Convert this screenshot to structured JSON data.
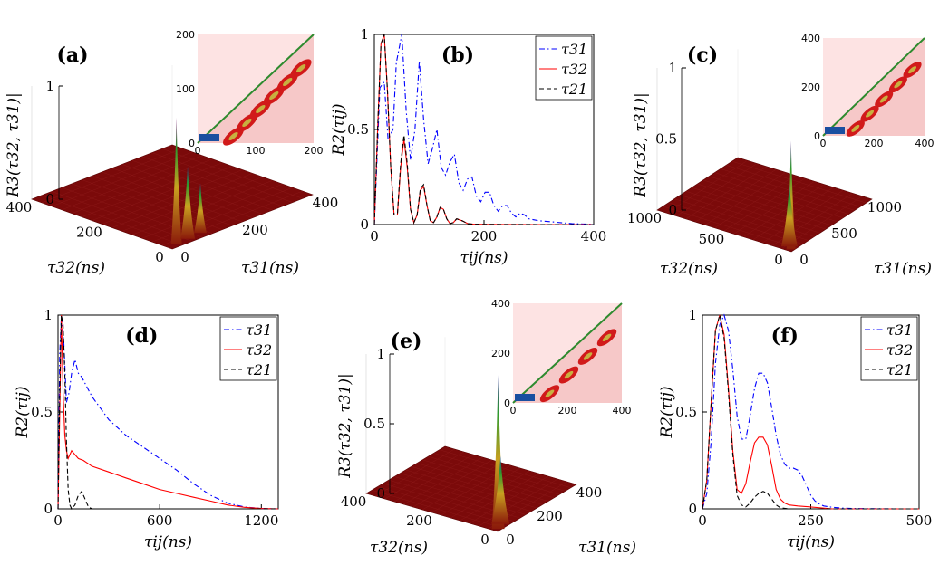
{
  "chart_data": [
    {
      "id": "a",
      "type": "surface3d",
      "panel_label": "(a)",
      "zlabel": "R3(τ32, τ31)|",
      "xlabel": "τ32(ns)",
      "ylabel": "τ31(ns)",
      "z_ticks": [
        "0",
        "1"
      ],
      "x_ticks": [
        "0",
        "200",
        "400"
      ],
      "y_ticks": [
        "0",
        "200",
        "400"
      ],
      "inset": {
        "type": "heatmap",
        "x_ticks": [
          "0",
          "100",
          "200"
        ],
        "y_ticks": [
          "0",
          "100",
          "200"
        ],
        "xlim": [
          0,
          200
        ],
        "ylim": [
          0,
          200
        ]
      },
      "colors": {
        "floor": "#7b0a0a",
        "background_inset": "#fde3e3"
      }
    },
    {
      "id": "b",
      "type": "line",
      "panel_label": "(b)",
      "ylabel": "R2(τij)",
      "xlabel": "τij(ns)",
      "xlim": [
        0,
        400
      ],
      "ylim": [
        0,
        1
      ],
      "x_ticks": [
        "0",
        "200",
        "400"
      ],
      "y_ticks": [
        "0",
        "0.5",
        "1"
      ],
      "series": [
        {
          "name": "τ31",
          "color": "#0000ff",
          "style": "dashdot",
          "x": [
            0,
            10,
            18,
            25,
            34,
            40,
            50,
            58,
            66,
            74,
            82,
            90,
            98,
            106,
            114,
            122,
            130,
            138,
            146,
            154,
            162,
            170,
            178,
            186,
            194,
            202,
            210,
            218,
            226,
            234,
            242,
            250,
            258,
            266,
            274,
            282,
            300,
            320,
            340,
            360,
            380,
            400
          ],
          "y": [
            0,
            0.72,
            0.75,
            0.45,
            0.5,
            0.85,
            1.0,
            0.6,
            0.34,
            0.5,
            0.86,
            0.55,
            0.32,
            0.4,
            0.5,
            0.3,
            0.26,
            0.33,
            0.37,
            0.22,
            0.18,
            0.24,
            0.25,
            0.15,
            0.12,
            0.17,
            0.17,
            0.1,
            0.07,
            0.1,
            0.1,
            0.06,
            0.04,
            0.06,
            0.05,
            0.03,
            0.02,
            0.015,
            0.01,
            0.005,
            0.003,
            0.002
          ]
        },
        {
          "name": "τ32",
          "color": "#ff0000",
          "style": "solid",
          "x": [
            0,
            6,
            12,
            18,
            24,
            30,
            36,
            42,
            48,
            54,
            60,
            66,
            72,
            78,
            84,
            90,
            96,
            102,
            108,
            114,
            120,
            126,
            132,
            138,
            144,
            150,
            160,
            170,
            180,
            200,
            240,
            300,
            400
          ],
          "y": [
            0,
            0.5,
            0.95,
            1.0,
            0.7,
            0.3,
            0.05,
            0.05,
            0.3,
            0.45,
            0.3,
            0.08,
            0.01,
            0.05,
            0.18,
            0.2,
            0.1,
            0.02,
            0.01,
            0.04,
            0.09,
            0.08,
            0.03,
            0.005,
            0.01,
            0.03,
            0.02,
            0.005,
            0.002,
            0.001,
            0.0005,
            0.0,
            0.0
          ]
        },
        {
          "name": "τ21",
          "color": "#000000",
          "style": "dashed",
          "x": [
            0,
            6,
            12,
            18,
            24,
            30,
            36,
            42,
            48,
            54,
            60,
            66,
            72,
            78,
            84,
            90,
            96,
            102,
            108,
            114,
            120,
            126,
            132,
            138,
            144,
            150,
            160,
            170,
            180,
            200,
            240,
            300,
            400
          ],
          "y": [
            0,
            0.5,
            0.95,
            1.0,
            0.7,
            0.3,
            0.05,
            0.05,
            0.32,
            0.47,
            0.32,
            0.08,
            0.01,
            0.05,
            0.19,
            0.21,
            0.1,
            0.02,
            0.01,
            0.04,
            0.09,
            0.08,
            0.03,
            0.005,
            0.01,
            0.03,
            0.02,
            0.005,
            0.002,
            0.001,
            0.0005,
            0.0,
            0.0
          ]
        }
      ],
      "legend": "top-right"
    },
    {
      "id": "c",
      "type": "surface3d",
      "panel_label": "(c)",
      "zlabel": "R3(τ32, τ31)|",
      "xlabel": "τ32(ns)",
      "ylabel": "τ31(ns)",
      "z_ticks": [
        "0",
        "0.5",
        "1"
      ],
      "x_ticks": [
        "0",
        "500",
        "1000"
      ],
      "y_ticks": [
        "0",
        "500",
        "1000"
      ],
      "inset": {
        "type": "heatmap",
        "x_ticks": [
          "0",
          "200",
          "400"
        ],
        "y_ticks": [
          "0",
          "200",
          "400"
        ],
        "xlim": [
          0,
          400
        ],
        "ylim": [
          0,
          400
        ]
      }
    },
    {
      "id": "d",
      "type": "line",
      "panel_label": "(d)",
      "ylabel": "R2(τij)",
      "xlabel": "τij(ns)",
      "xlim": [
        0,
        1300
      ],
      "ylim": [
        0,
        1
      ],
      "x_ticks": [
        "0",
        "600",
        "1200"
      ],
      "y_ticks": [
        "0",
        "0.5",
        "1"
      ],
      "series": [
        {
          "name": "τ31",
          "color": "#0000ff",
          "style": "dashdot",
          "x": [
            0,
            10,
            20,
            35,
            50,
            65,
            80,
            100,
            120,
            140,
            170,
            200,
            250,
            300,
            400,
            500,
            600,
            700,
            800,
            900,
            1000,
            1100,
            1200,
            1300
          ],
          "y": [
            0,
            0.8,
            1.0,
            0.85,
            0.55,
            0.6,
            0.7,
            0.77,
            0.7,
            0.68,
            0.63,
            0.58,
            0.52,
            0.46,
            0.38,
            0.32,
            0.26,
            0.2,
            0.13,
            0.07,
            0.03,
            0.01,
            0.002,
            0.0
          ]
        },
        {
          "name": "τ32",
          "color": "#ff0000",
          "style": "solid",
          "x": [
            0,
            10,
            20,
            30,
            40,
            50,
            60,
            80,
            100,
            120,
            150,
            200,
            300,
            400,
            500,
            600,
            700,
            800,
            900,
            1000,
            1100,
            1200,
            1300
          ],
          "y": [
            0,
            0.5,
            1.0,
            0.6,
            0.38,
            0.3,
            0.26,
            0.3,
            0.28,
            0.26,
            0.25,
            0.22,
            0.19,
            0.16,
            0.13,
            0.1,
            0.08,
            0.06,
            0.04,
            0.02,
            0.008,
            0.002,
            0.0
          ]
        },
        {
          "name": "τ21",
          "color": "#000000",
          "style": "dashed",
          "x": [
            0,
            10,
            20,
            30,
            40,
            50,
            60,
            70,
            80,
            100,
            120,
            140,
            160,
            180,
            200,
            240,
            300,
            600,
            1300
          ],
          "y": [
            0,
            0.6,
            1.0,
            0.95,
            0.7,
            0.35,
            0.1,
            0.02,
            0.0,
            0.02,
            0.07,
            0.09,
            0.05,
            0.01,
            0.0,
            0.0,
            0.0,
            0.0,
            0.0
          ]
        }
      ],
      "legend": "top-right"
    },
    {
      "id": "e",
      "type": "surface3d",
      "panel_label": "(e)",
      "zlabel": "R3(τ32, τ31)|",
      "xlabel": "τ32(ns)",
      "ylabel": "τ31(ns)",
      "z_ticks": [
        "0",
        "0.5",
        "1"
      ],
      "x_ticks": [
        "0",
        "200",
        "400"
      ],
      "y_ticks": [
        "0",
        "200",
        "400"
      ],
      "inset": {
        "type": "heatmap",
        "x_ticks": [
          "0",
          "200",
          "400"
        ],
        "y_ticks": [
          "0",
          "200",
          "400"
        ],
        "xlim": [
          0,
          400
        ],
        "ylim": [
          0,
          400
        ]
      }
    },
    {
      "id": "f",
      "type": "line",
      "panel_label": "(f)",
      "ylabel": "R2(τij)",
      "xlabel": "τij(ns)",
      "xlim": [
        0,
        500
      ],
      "ylim": [
        0,
        1
      ],
      "x_ticks": [
        "0",
        "250",
        "500"
      ],
      "y_ticks": [
        "0",
        "0.5",
        "1"
      ],
      "series": [
        {
          "name": "τ31",
          "color": "#0000ff",
          "style": "dashdot",
          "x": [
            0,
            10,
            20,
            30,
            40,
            50,
            60,
            70,
            80,
            90,
            100,
            110,
            120,
            130,
            140,
            150,
            160,
            170,
            180,
            190,
            200,
            210,
            220,
            230,
            240,
            250,
            260,
            270,
            280,
            300,
            320,
            350,
            400,
            450,
            500
          ],
          "y": [
            0,
            0.08,
            0.35,
            0.75,
            0.95,
            1.0,
            0.92,
            0.72,
            0.48,
            0.36,
            0.36,
            0.48,
            0.62,
            0.7,
            0.7,
            0.65,
            0.52,
            0.38,
            0.28,
            0.23,
            0.21,
            0.21,
            0.2,
            0.17,
            0.12,
            0.07,
            0.04,
            0.025,
            0.015,
            0.008,
            0.004,
            0.002,
            0.001,
            0.0,
            0.0
          ]
        },
        {
          "name": "τ32",
          "color": "#ff0000",
          "style": "solid",
          "x": [
            0,
            10,
            20,
            30,
            40,
            50,
            60,
            70,
            80,
            90,
            100,
            110,
            120,
            130,
            140,
            150,
            160,
            170,
            180,
            190,
            200,
            220,
            250,
            300,
            500
          ],
          "y": [
            0,
            0.15,
            0.55,
            0.92,
            1.0,
            0.9,
            0.62,
            0.3,
            0.1,
            0.08,
            0.13,
            0.24,
            0.34,
            0.37,
            0.37,
            0.33,
            0.22,
            0.1,
            0.05,
            0.03,
            0.02,
            0.015,
            0.01,
            0.0,
            0.0
          ]
        },
        {
          "name": "τ21",
          "color": "#000000",
          "style": "dashed",
          "x": [
            0,
            10,
            20,
            30,
            40,
            50,
            60,
            70,
            80,
            90,
            100,
            110,
            120,
            130,
            140,
            150,
            160,
            170,
            180,
            200,
            250,
            500
          ],
          "y": [
            0,
            0.15,
            0.55,
            0.92,
            1.0,
            0.88,
            0.6,
            0.28,
            0.07,
            0.02,
            0.01,
            0.03,
            0.06,
            0.08,
            0.09,
            0.08,
            0.05,
            0.02,
            0.005,
            0.0,
            0.0,
            0.0
          ]
        }
      ],
      "legend": "top-right"
    }
  ]
}
